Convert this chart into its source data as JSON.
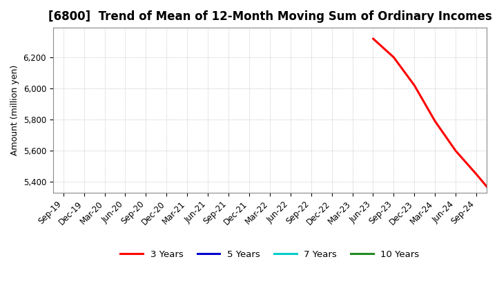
{
  "title": "[6800]  Trend of Mean of 12-Month Moving Sum of Ordinary Incomes",
  "ylabel": "Amount (million yen)",
  "background_color": "#ffffff",
  "plot_bg_color": "#ffffff",
  "grid_color": "#aaaaaa",
  "ylim": [
    5330,
    6390
  ],
  "yticks": [
    5400,
    5600,
    5800,
    6000,
    6200
  ],
  "x_labels": [
    "Sep-19",
    "Dec-19",
    "Mar-20",
    "Jun-20",
    "Sep-20",
    "Dec-20",
    "Mar-21",
    "Jun-21",
    "Sep-21",
    "Dec-21",
    "Mar-22",
    "Jun-22",
    "Sep-22",
    "Dec-22",
    "Mar-23",
    "Jun-23",
    "Sep-23",
    "Dec-23",
    "Mar-24",
    "Jun-24",
    "Sep-24"
  ],
  "series_3y": {
    "color": "#ff0000",
    "label": "3 Years",
    "data": [
      [
        15,
        6320
      ],
      [
        16,
        6200
      ],
      [
        17,
        6020
      ],
      [
        18,
        5790
      ],
      [
        19,
        5600
      ],
      [
        20,
        5450
      ],
      [
        20.6,
        5355
      ]
    ]
  },
  "series_5y": {
    "color": "#0000cd",
    "label": "5 Years"
  },
  "series_7y": {
    "color": "#00cccc",
    "label": "7 Years"
  },
  "series_10y": {
    "color": "#228B22",
    "label": "10 Years"
  },
  "title_fontsize": 12,
  "axis_fontsize": 9,
  "tick_fontsize": 8.5
}
